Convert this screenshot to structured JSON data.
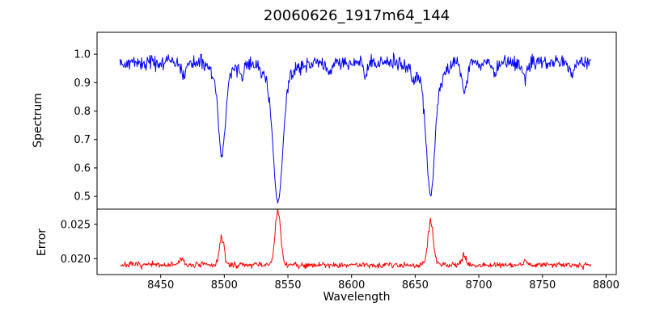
{
  "figure": {
    "title": "20060626_1917m64_144",
    "xlabel": "Wavelength",
    "background": "#ffffff",
    "axis_color": "#000000"
  },
  "chart_data": [
    {
      "id": "spectrum-panel",
      "type": "line",
      "title": "20060626_1917m64_144",
      "ylabel": "Spectrum",
      "line_color": "#0000ff",
      "xlim": [
        8400,
        8808
      ],
      "ylim": [
        0.455,
        1.077
      ],
      "yticks": [
        0.5,
        0.6,
        0.7,
        0.8,
        0.9,
        1.0
      ],
      "ytick_labels": [
        "0.5",
        "0.6",
        "0.7",
        "0.8",
        "0.9",
        "1.0"
      ],
      "x_data_range": [
        8418,
        8788
      ],
      "sample_step": 0.5,
      "continuum": 0.97,
      "noise_sigma": 0.013,
      "noise_seed": 42,
      "grid": false,
      "legend": null,
      "absorption_lines": [
        {
          "center": 8498.0,
          "depth": 0.27,
          "sigma": 2.6
        },
        {
          "center": 8498.0,
          "depth": 0.06,
          "sigma": 7.0
        },
        {
          "center": 8542.1,
          "depth": 0.405,
          "sigma": 3.6
        },
        {
          "center": 8542.1,
          "depth": 0.085,
          "sigma": 9.0
        },
        {
          "center": 8662.1,
          "depth": 0.385,
          "sigma": 3.2
        },
        {
          "center": 8662.1,
          "depth": 0.08,
          "sigma": 8.5
        },
        {
          "center": 8688.6,
          "depth": 0.1,
          "sigma": 2.0
        },
        {
          "center": 8468.0,
          "depth": 0.05,
          "sigma": 1.5
        },
        {
          "center": 8514.0,
          "depth": 0.045,
          "sigma": 1.5
        },
        {
          "center": 8583.0,
          "depth": 0.04,
          "sigma": 1.5
        },
        {
          "center": 8611.0,
          "depth": 0.04,
          "sigma": 1.5
        },
        {
          "center": 8648.0,
          "depth": 0.045,
          "sigma": 1.5
        },
        {
          "center": 8713.0,
          "depth": 0.04,
          "sigma": 1.5
        },
        {
          "center": 8736.0,
          "depth": 0.05,
          "sigma": 1.8
        },
        {
          "center": 8773.0,
          "depth": 0.055,
          "sigma": 1.5
        }
      ]
    },
    {
      "id": "error-panel",
      "type": "line",
      "ylabel": "Error",
      "xlabel": "Wavelength",
      "line_color": "#ff0000",
      "xlim": [
        8400,
        8808
      ],
      "ylim": [
        0.0177,
        0.0272
      ],
      "yticks": [
        0.02,
        0.025
      ],
      "ytick_labels": [
        "0.020",
        "0.025"
      ],
      "xticks": [
        8450,
        8500,
        8550,
        8600,
        8650,
        8700,
        8750,
        8800
      ],
      "xtick_labels": [
        "8450",
        "8500",
        "8550",
        "8600",
        "8650",
        "8700",
        "8750",
        "8800"
      ],
      "x_data_range": [
        8418,
        8788
      ],
      "sample_step": 0.5,
      "baseline": 0.0191,
      "noise_sigma": 0.00022,
      "noise_seed": 7,
      "grid": false,
      "legend": null,
      "peaks": [
        {
          "center": 8498.0,
          "height": 0.004,
          "sigma": 1.8
        },
        {
          "center": 8542.1,
          "height": 0.0076,
          "sigma": 2.2
        },
        {
          "center": 8662.1,
          "height": 0.0061,
          "sigma": 2.2
        },
        {
          "center": 8688.6,
          "height": 0.0014,
          "sigma": 1.5
        },
        {
          "center": 8466.0,
          "height": 0.0009,
          "sigma": 1.5
        },
        {
          "center": 8736.0,
          "height": 0.0006,
          "sigma": 1.5
        }
      ]
    }
  ]
}
